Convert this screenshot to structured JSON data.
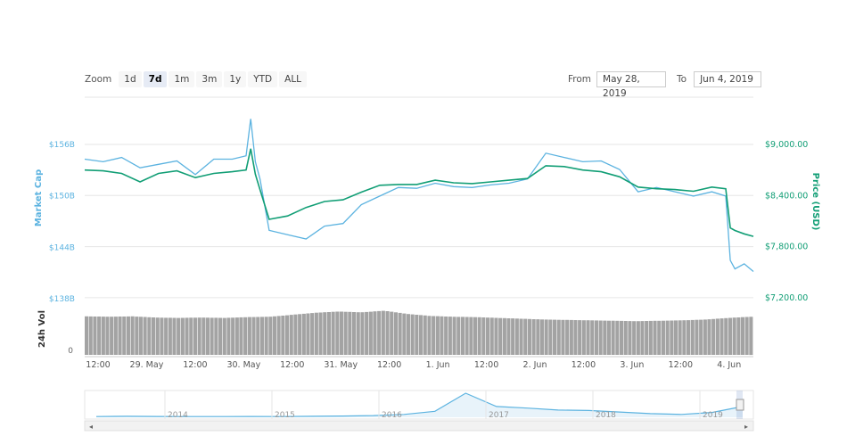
{
  "toolbar": {
    "zoom_label": "Zoom",
    "zoom_buttons": [
      "1d",
      "7d",
      "1m",
      "3m",
      "1y",
      "YTD",
      "ALL"
    ],
    "selected_zoom": "7d",
    "from_label": "From",
    "from_value": "May 28, 2019",
    "to_label": "To",
    "to_value": "Jun 4, 2019"
  },
  "colors": {
    "market_cap": "#5cb3e0",
    "price": "#119e75",
    "volume": "#a3a3a3"
  },
  "chart_data": [
    {
      "type": "line",
      "left_axis": {
        "title": "Market Cap",
        "ticks": [
          "$156B",
          "$150B",
          "$144B",
          "$138B"
        ],
        "values": [
          156,
          150,
          144,
          138
        ],
        "unit": "$B"
      },
      "right_axis": {
        "title": "Price (USD)",
        "ticks": [
          "$9,000.00",
          "$8,400.00",
          "$7,800.00",
          "$7,200.00"
        ],
        "values": [
          9000,
          8400,
          7800,
          7200
        ]
      },
      "x_ticks": [
        "12:00",
        "29. May",
        "12:00",
        "30. May",
        "12:00",
        "31. May",
        "12:00",
        "1. Jun",
        "12:00",
        "2. Jun",
        "12:00",
        "3. Jun",
        "12:00",
        "4. Jun"
      ],
      "x": [
        0,
        0.2,
        0.4,
        0.6,
        0.8,
        1.0,
        1.2,
        1.4,
        1.6,
        1.75,
        1.8,
        1.85,
        1.9,
        2.0,
        2.2,
        2.4,
        2.6,
        2.8,
        3.0,
        3.2,
        3.4,
        3.6,
        3.8,
        4.0,
        4.2,
        4.4,
        4.6,
        4.8,
        5.0,
        5.2,
        5.4,
        5.6,
        5.8,
        6.0,
        6.2,
        6.4,
        6.6,
        6.8,
        6.95,
        7.0,
        7.05,
        7.15,
        7.25
      ],
      "series": [
        {
          "name": "Market Cap",
          "values": [
            154.8,
            154.5,
            155.0,
            153.8,
            154.2,
            154.6,
            153.0,
            154.8,
            154.8,
            155.2,
            159.5,
            154.5,
            152.5,
            146.5,
            146.0,
            145.5,
            147.0,
            147.3,
            149.5,
            150.5,
            151.5,
            151.4,
            152.0,
            151.6,
            151.5,
            151.8,
            152.0,
            152.5,
            155.5,
            155.0,
            154.5,
            154.6,
            153.6,
            151.0,
            151.5,
            151.0,
            150.5,
            151.0,
            150.5,
            143.0,
            142.0,
            142.6,
            141.7
          ]
        },
        {
          "name": "Price (USD)",
          "values": [
            8700,
            8690,
            8660,
            8560,
            8660,
            8690,
            8610,
            8660,
            8680,
            8700,
            8950,
            8650,
            8470,
            8120,
            8160,
            8260,
            8330,
            8350,
            8440,
            8520,
            8530,
            8530,
            8580,
            8550,
            8540,
            8560,
            8580,
            8600,
            8750,
            8740,
            8700,
            8680,
            8620,
            8500,
            8480,
            8470,
            8450,
            8500,
            8480,
            8020,
            7990,
            7950,
            7920
          ]
        }
      ]
    },
    {
      "type": "bar",
      "name": "24h Vol",
      "y_axis": {
        "title": "24h Vol",
        "ticks": [
          "0"
        ]
      },
      "values_relative": [
        0.96,
        0.95,
        0.96,
        0.93,
        0.92,
        0.93,
        0.92,
        0.94,
        0.95,
        1.0,
        1.05,
        1.08,
        1.06,
        1.1,
        1.02,
        0.97,
        0.95,
        0.94,
        0.92,
        0.9,
        0.88,
        0.87,
        0.86,
        0.85,
        0.84,
        0.85,
        0.86,
        0.88,
        0.92,
        0.95
      ]
    },
    {
      "type": "area",
      "name": "navigator",
      "x_ticks": [
        "2014",
        "2015",
        "2016",
        "2017",
        "2018",
        "2019"
      ],
      "values": [
        0.03,
        0.04,
        0.035,
        0.03,
        0.03,
        0.035,
        0.03,
        0.04,
        0.05,
        0.07,
        0.12,
        0.25,
        1.0,
        0.45,
        0.38,
        0.3,
        0.28,
        0.22,
        0.15,
        0.12,
        0.2,
        0.45
      ]
    }
  ]
}
